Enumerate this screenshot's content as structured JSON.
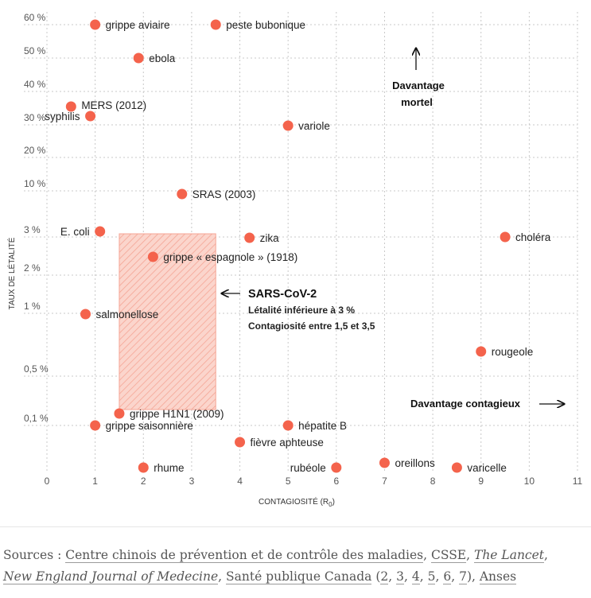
{
  "chart_data": {
    "type": "scatter",
    "xlabel_main": "CONTAGIOSITÉ (R",
    "xlabel_sub": "0",
    "xlabel_end": ")",
    "ylabel": "TAUX DE LÉTALITÉ",
    "xlim": [
      0,
      11
    ],
    "x_ticks": [
      "0",
      "1",
      "2",
      "3",
      "4",
      "5",
      "6",
      "7",
      "8",
      "9",
      "10",
      "11"
    ],
    "y_scale": "categorical-irregular",
    "y_ticks": [
      "60 %",
      "50 %",
      "40 %",
      "30 %",
      "20 %",
      "10 %",
      "3 %",
      "2 %",
      "1 %",
      "0,5 %",
      "0,1 %"
    ],
    "y_tick_values": [
      60,
      50,
      40,
      30,
      20,
      10,
      3,
      2,
      1,
      0.5,
      0.1
    ],
    "grid": true,
    "marker_color": "#f4634c",
    "points": [
      {
        "label": "grippe aviaire",
        "x": 1.0,
        "y": 60
      },
      {
        "label": "peste bubonique",
        "x": 3.5,
        "y": 60
      },
      {
        "label": "ebola",
        "x": 1.9,
        "y": 50
      },
      {
        "label": "MERS (2012)",
        "x": 0.5,
        "y": 35
      },
      {
        "label": "syphilis",
        "x": 0.9,
        "y": 32
      },
      {
        "label": "variole",
        "x": 5.0,
        "y": 30
      },
      {
        "label": "SRAS (2003)",
        "x": 2.8,
        "y": 10
      },
      {
        "label": "E. coli",
        "x": 1.1,
        "y": 3.1
      },
      {
        "label": "zika",
        "x": 4.2,
        "y": 3.0
      },
      {
        "label": "choléra",
        "x": 9.5,
        "y": 3.0
      },
      {
        "label": "grippe « espagnole » (1918)",
        "x": 2.2,
        "y": 2.5
      },
      {
        "label": "salmonellose",
        "x": 0.8,
        "y": 1.0
      },
      {
        "label": "rougeole",
        "x": 9.0,
        "y": 0.7
      },
      {
        "label": "grippe H1N1 (2009)",
        "x": 1.5,
        "y": 0.15
      },
      {
        "label": "grippe saisonnière",
        "x": 1.0,
        "y": 0.1
      },
      {
        "label": "hépatite B",
        "x": 5.0,
        "y": 0.1
      },
      {
        "label": "fièvre aphteuse",
        "x": 4.0,
        "y": 0.06
      },
      {
        "label": "oreillons",
        "x": 7.0,
        "y": 0.02
      },
      {
        "label": "rhume",
        "x": 2.0,
        "y": 0.01
      },
      {
        "label": "rubéole",
        "x": 6.0,
        "y": 0.01
      },
      {
        "label": "varicelle",
        "x": 8.5,
        "y": 0.01
      }
    ],
    "region": {
      "name": "SARS-CoV-2",
      "x0": 1.5,
      "x1": 3.5,
      "y_max": 3,
      "color": "#f4634c"
    },
    "annotations": {
      "sars_title": "SARS-CoV-2",
      "sars_line1": "Létalité inférieure à 3 %",
      "sars_line2": "Contagiosité entre 1,5 et 3,5",
      "deadly_line1": "Davantage",
      "deadly_line2": "mortel",
      "contagious": "Davantage contagieux"
    }
  },
  "sources": {
    "prefix": "Sources : ",
    "s1": "Centre chinois de prévention et de contrôle des maladies",
    "sep1": ", ",
    "s2": "CSSE",
    "sep2": ", ",
    "s3": "The Lancet",
    "sep3": ",",
    "s4": "New England Journal of Medecine",
    "sep4": ", ",
    "s5": "Santé publique Canada",
    "paren_open": " (",
    "n2": "2",
    "n3": "3",
    "n4": "4",
    "n5": "5",
    "n6": "6",
    "n7": "7",
    "paren_close": "), ",
    "s6": "Anses"
  }
}
